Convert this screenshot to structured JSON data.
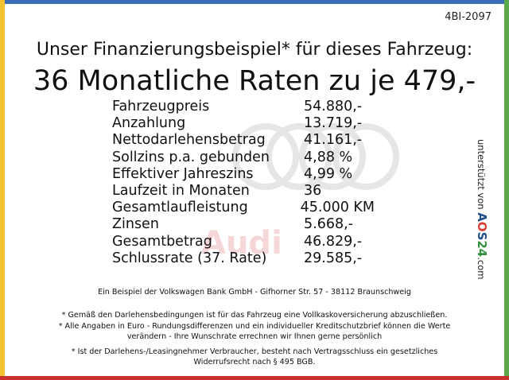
{
  "colors": {
    "bar_top": "#3a6db5",
    "bar_left": "#f2c230",
    "bar_right": "#5aa84a",
    "bar_bottom": "#c8322c",
    "watermark": "#e6e6e6",
    "watermark_text": "#f6d7d7",
    "brand_a": "#1f4e8c",
    "brand_o": "#d83a2f",
    "brand_s": "#1f4e8c",
    "brand_24": "#2f8f3a"
  },
  "ref_code": "4BI-2097",
  "headline": "Unser Finanzierungsbeispiel* für dieses Fahrzeug:",
  "big_line": "36 Monatliche Raten zu je 479,-",
  "watermark_text": "Audi",
  "rows": [
    {
      "label": "Fahrzeugpreis",
      "value": "54.880,-"
    },
    {
      "label": "Anzahlung",
      "value": "13.719,-"
    },
    {
      "label": "Nettodarlehensbetrag",
      "value": "41.161,-"
    },
    {
      "label": "Sollzins p.a. gebunden",
      "value": "4,88 %"
    },
    {
      "label": "Effektiver Jahreszins",
      "value": "4,99 %"
    },
    {
      "label": "Laufzeit in Monaten",
      "value": "36"
    },
    {
      "label": "Gesamtlaufleistung",
      "value": "45.000 KM"
    },
    {
      "label": "Zinsen",
      "value": "5.668,-"
    },
    {
      "label": "Gesamtbetrag",
      "value": "46.829,-"
    },
    {
      "label": "Schlussrate (37. Rate)",
      "value": "29.585,-"
    }
  ],
  "side": {
    "prefix": "unterstützt von",
    "brand_a": "A",
    "brand_o": "O",
    "brand_s": "S",
    "brand_24": "24",
    "suffix": ".com"
  },
  "footer": {
    "bank": "Ein Beispiel der Volkswagen Bank GmbH - Gifhorner Str. 57 - 38112 Braunschweig",
    "note1": "* Gemäß den Darlehensbedingungen ist für das Fahrzeug eine Vollkaskoversicherung abzuschließen.",
    "note2a": "* Alle Angaben in Euro - Rundungsdifferenzen und ein individueller Kreditschutzbrief können die Werte",
    "note2b": "verändern - Ihre Wunschrate errechnen wir Ihnen gerne persönlich",
    "note3a": "* Ist der Darlehens-/Leasingnehmer Verbraucher, besteht nach Vertragsschluss ein gesetzliches",
    "note3b": "Widerrufsrecht nach § 495 BGB."
  }
}
